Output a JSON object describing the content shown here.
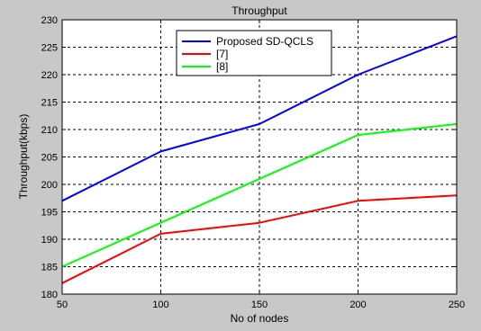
{
  "chart_data": {
    "type": "line",
    "title": "Throughput",
    "xlabel": "No of nodes",
    "ylabel": "Throughput(kbps)",
    "x": [
      50,
      100,
      150,
      200,
      250
    ],
    "xlim": [
      50,
      250
    ],
    "ylim": [
      180,
      230
    ],
    "x_ticks": [
      50,
      100,
      150,
      200,
      250
    ],
    "y_ticks": [
      180,
      185,
      190,
      195,
      200,
      205,
      210,
      215,
      220,
      225,
      230
    ],
    "grid": true,
    "grid_style": "dashed",
    "legend_position": "top-center",
    "series": [
      {
        "name": "Proposed SD-QCLS",
        "color": "#0000ff",
        "values": [
          197,
          206,
          211,
          220,
          227
        ]
      },
      {
        "name": "[7]",
        "color": "#ff0000",
        "values": [
          182,
          191,
          193,
          197,
          198
        ]
      },
      {
        "name": "[8]",
        "color": "#00ff00",
        "values": [
          185,
          193,
          201,
          209,
          211
        ]
      }
    ]
  },
  "colors": {
    "figure_background": "#c8c8c8",
    "plot_background": "#ffffff",
    "axis": "#000000"
  }
}
